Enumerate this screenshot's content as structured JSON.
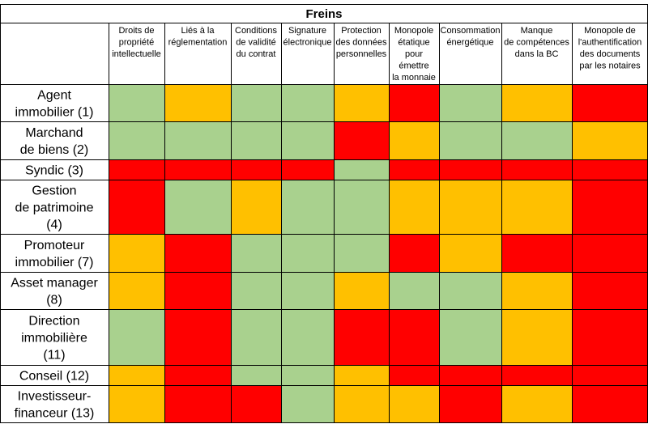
{
  "chart_data": {
    "type": "heatmap",
    "title": "Freins",
    "columns": [
      [
        "Droits de",
        "propriété",
        "intellectuelle"
      ],
      [
        "Liés à la",
        "réglementation"
      ],
      [
        "Conditions",
        "de validité",
        "du contrat"
      ],
      [
        "Signature",
        "électronique"
      ],
      [
        "Protection",
        "des données",
        "personnelles"
      ],
      [
        "Monopole",
        "étatique",
        "pour",
        "émettre",
        "la monnaie"
      ],
      [
        "Consommation",
        "énergétique"
      ],
      [
        "Manque",
        "de compétences",
        "dans la BC"
      ],
      [
        "Monopole de",
        "l'authentification",
        "des documents",
        "par les notaires"
      ]
    ],
    "rows": [
      [
        "Agent",
        "immobilier (1)"
      ],
      [
        "Marchand",
        "de biens (2)"
      ],
      [
        "Syndic (3)"
      ],
      [
        "Gestion",
        "de patrimoine",
        "(4)"
      ],
      [
        "Promoteur",
        "immobilier (7)"
      ],
      [
        "Asset manager",
        "(8)"
      ],
      [
        "Direction",
        "immobilière",
        "(11)"
      ],
      [
        "Conseil (12)"
      ],
      [
        "Investisseur-",
        "financeur (13)"
      ]
    ],
    "levels": {
      "G": "#a9d18e",
      "O": "#ffc000",
      "R": "#ff0000"
    },
    "cells": [
      [
        "G",
        "O",
        "G",
        "G",
        "O",
        "R",
        "G",
        "O",
        "R"
      ],
      [
        "G",
        "G",
        "G",
        "G",
        "R",
        "O",
        "G",
        "G",
        "O"
      ],
      [
        "R",
        "R",
        "R",
        "R",
        "G",
        "R",
        "R",
        "R",
        "R"
      ],
      [
        "R",
        "G",
        "O",
        "G",
        "G",
        "O",
        "O",
        "O",
        "R"
      ],
      [
        "O",
        "R",
        "G",
        "G",
        "G",
        "R",
        "O",
        "R",
        "R"
      ],
      [
        "O",
        "R",
        "G",
        "G",
        "O",
        "G",
        "G",
        "O",
        "R"
      ],
      [
        "G",
        "R",
        "G",
        "G",
        "R",
        "R",
        "G",
        "O",
        "R"
      ],
      [
        "O",
        "R",
        "G",
        "G",
        "O",
        "R",
        "R",
        "R",
        "R"
      ],
      [
        "O",
        "R",
        "R",
        "G",
        "O",
        "O",
        "R",
        "O",
        "R"
      ]
    ],
    "grid": true
  }
}
